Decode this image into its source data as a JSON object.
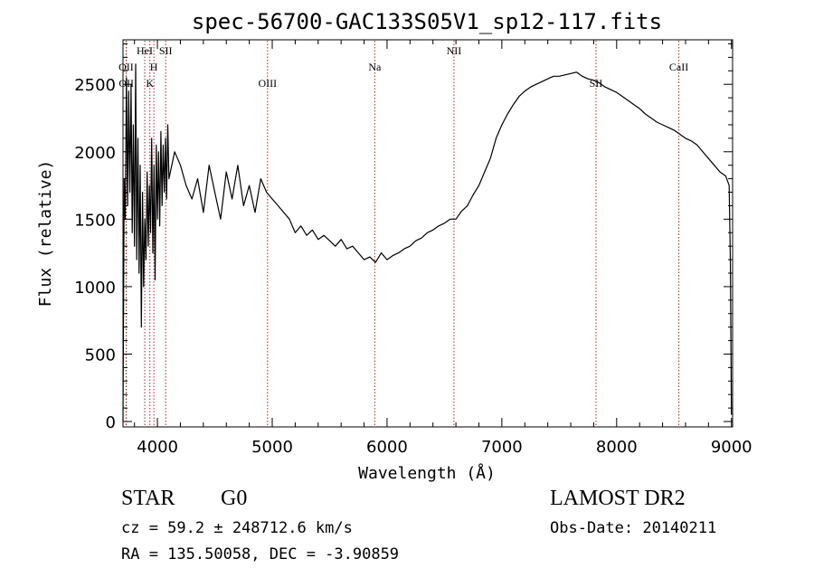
{
  "chart_data": {
    "type": "line",
    "title": "spec-56700-GAC133S05V1_sp12-117.fits",
    "xlabel": "Wavelength (Å)",
    "ylabel": "Flux (relative)",
    "xlim": [
      3700,
      9010
    ],
    "ylim": [
      -40,
      2830
    ],
    "x_ticks": [
      4000,
      5000,
      6000,
      7000,
      8000,
      9000
    ],
    "y_ticks": [
      0,
      500,
      1000,
      1500,
      2000,
      2500
    ],
    "x_tick_labels": [
      "4000",
      "5000",
      "6000",
      "7000",
      "8000",
      "9000"
    ],
    "y_tick_labels": [
      "0",
      "500",
      "1000",
      "1500",
      "2000",
      "2500"
    ],
    "grid": false,
    "line_color": "#000000",
    "marker_color": "#b22222",
    "series": [
      {
        "x": [
          3700,
          3710,
          3720,
          3730,
          3740,
          3750,
          3760,
          3770,
          3780,
          3790,
          3800,
          3810,
          3820,
          3830,
          3840,
          3850,
          3860,
          3870,
          3880,
          3890,
          3900,
          3910,
          3920,
          3930,
          3940,
          3950,
          3960,
          3970,
          3980,
          3990,
          4000,
          4010,
          4020,
          4030,
          4040,
          4050,
          4060,
          4070,
          4080,
          4090,
          4100,
          4150,
          4200,
          4250,
          4300,
          4350,
          4400,
          4450,
          4500,
          4550,
          4600,
          4650,
          4700,
          4750,
          4800,
          4850,
          4900,
          4950,
          5000,
          5050,
          5100,
          5150,
          5200,
          5250,
          5300,
          5350,
          5400,
          5450,
          5500,
          5550,
          5600,
          5650,
          5700,
          5750,
          5800,
          5850,
          5900,
          5950,
          6000,
          6050,
          6100,
          6150,
          6200,
          6250,
          6300,
          6350,
          6400,
          6450,
          6500,
          6550,
          6600,
          6650,
          6700,
          6750,
          6800,
          6850,
          6900,
          6950,
          7000,
          7050,
          7100,
          7150,
          7200,
          7250,
          7300,
          7350,
          7400,
          7450,
          7500,
          7550,
          7600,
          7650,
          7700,
          7750,
          7800,
          7850,
          7900,
          7950,
          8000,
          8050,
          8100,
          8150,
          8200,
          8250,
          8300,
          8350,
          8400,
          8450,
          8500,
          8550,
          8600,
          8650,
          8700,
          8750,
          8800,
          8850,
          8900,
          8950,
          8980,
          8990,
          9000
        ],
        "y": [
          0,
          1800,
          1500,
          2550,
          1600,
          2450,
          1700,
          2500,
          1400,
          2200,
          1300,
          2650,
          1200,
          2100,
          1100,
          1900,
          700,
          1700,
          1000,
          1500,
          1200,
          1850,
          1300,
          1750,
          1400,
          2100,
          1250,
          1900,
          1050,
          2050,
          1500,
          2000,
          1450,
          2150,
          1600,
          2050,
          1700,
          2100,
          1650,
          2200,
          1800,
          2000,
          1900,
          1750,
          1650,
          1800,
          1550,
          1900,
          1700,
          1500,
          1850,
          1650,
          1900,
          1600,
          1750,
          1550,
          1800,
          1700,
          1650,
          1600,
          1550,
          1500,
          1400,
          1450,
          1380,
          1420,
          1350,
          1380,
          1340,
          1300,
          1350,
          1280,
          1300,
          1250,
          1200,
          1220,
          1180,
          1250,
          1200,
          1230,
          1250,
          1280,
          1300,
          1340,
          1360,
          1400,
          1420,
          1450,
          1470,
          1500,
          1500,
          1560,
          1600,
          1680,
          1750,
          1850,
          1950,
          2100,
          2200,
          2280,
          2350,
          2410,
          2450,
          2480,
          2500,
          2520,
          2540,
          2560,
          2560,
          2570,
          2580,
          2590,
          2560,
          2540,
          2530,
          2510,
          2480,
          2460,
          2440,
          2410,
          2380,
          2350,
          2320,
          2280,
          2250,
          2220,
          2200,
          2180,
          2160,
          2130,
          2100,
          2080,
          2050,
          2000,
          1950,
          1900,
          1850,
          1820,
          1750,
          1200,
          50
        ]
      }
    ],
    "lines": [
      {
        "label": "OII",
        "x": 3727,
        "row": 1
      },
      {
        "label": "OII",
        "x": 3729,
        "row": 2
      },
      {
        "label": "HeI",
        "x": 3889,
        "row": 0
      },
      {
        "label": "K",
        "x": 3934,
        "row": 2
      },
      {
        "label": "H",
        "x": 3969,
        "row": 1
      },
      {
        "label": "SII",
        "x": 4072,
        "row": 0
      },
      {
        "label": "OIII",
        "x": 4959,
        "row": 2
      },
      {
        "label": "Na",
        "x": 5893,
        "row": 1
      },
      {
        "label": "NII",
        "x": 6583,
        "row": 0
      },
      {
        "label": "SII",
        "x": 7820,
        "row": 2
      },
      {
        "label": "CaII",
        "x": 8542,
        "row": 1
      }
    ]
  },
  "info": {
    "class": "STAR",
    "subclass": "G0",
    "survey": "LAMOST DR2",
    "redshift": "cz = 59.2 ± 248712.6 km/s",
    "obs_date": "Obs-Date: 20140211",
    "coords": "RA = 135.50058, DEC =  -3.90859"
  }
}
